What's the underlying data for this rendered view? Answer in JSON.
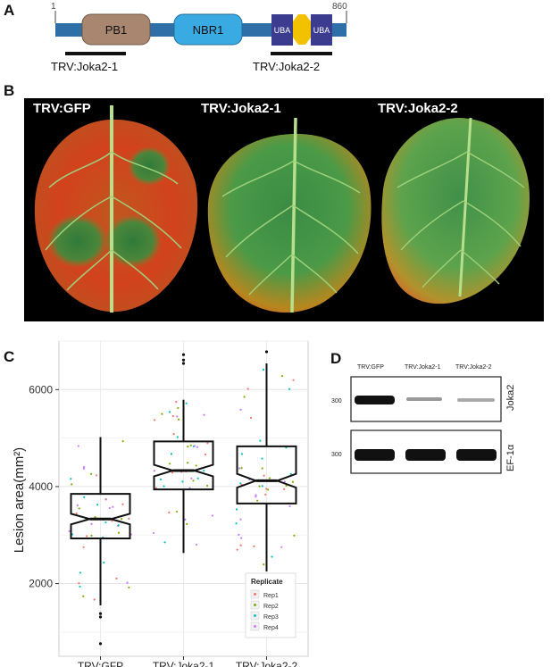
{
  "panels": {
    "a": "A",
    "b": "B",
    "c": "C",
    "d": "D"
  },
  "domain_map": {
    "start": "1",
    "end": "860",
    "domains": [
      "PB1",
      "NBR1",
      "UBA",
      "UBA"
    ],
    "fragments": [
      "TRV:Joka2-1",
      "TRV:Joka2-2"
    ],
    "colors": {
      "backbone": "#2f6fa8",
      "pb1": "#a98670",
      "nbr1": "#3aaae3",
      "uba": "#3b3b8f",
      "uba_link": "#f2c200"
    }
  },
  "leaves": {
    "labels": [
      "TRV:GFP",
      "TRV:Joka2-1",
      "TRV:Joka2-2"
    ]
  },
  "chart_data": {
    "type": "boxplot",
    "ylabel": "Lesion area(mm²)",
    "categories": [
      "TRV:GFP",
      "TRV:Joka2-1",
      "TRV:Joka2-2"
    ],
    "yticks": [
      2000,
      4000,
      6000
    ],
    "ylim": [
      500,
      7000
    ],
    "grid": true,
    "boxes": [
      {
        "name": "TRV:GFP",
        "whisker_low": 1550,
        "q1": 2930,
        "median": 3330,
        "q3": 3850,
        "whisker_high": 5020,
        "outliers": [
          1380,
          1310,
          760
        ]
      },
      {
        "name": "TRV:Joka2-1",
        "whisker_low": 2630,
        "q1": 3940,
        "median": 4330,
        "q3": 4930,
        "whisker_high": 5790,
        "outliers": [
          6540,
          6610,
          6720
        ]
      },
      {
        "name": "TRV:Joka2-2",
        "whisker_low": 2250,
        "q1": 3650,
        "median": 4120,
        "q3": 4830,
        "whisker_high": 6540,
        "outliers": [
          6780
        ]
      }
    ],
    "legend": {
      "title": "Replicate",
      "position": "bottom-right",
      "entries": [
        "Rep1",
        "Rep2",
        "Rep3",
        "Rep4"
      ],
      "colors": [
        "#f8766d",
        "#7cae00",
        "#00bfc4",
        "#c77cff"
      ]
    }
  },
  "western": {
    "lanes": [
      "TRV:GFP",
      "TRV:Joka2-1",
      "TRV:Joka2-2"
    ],
    "marker": "300",
    "targets": [
      "Joka2",
      "EF-1α"
    ]
  }
}
